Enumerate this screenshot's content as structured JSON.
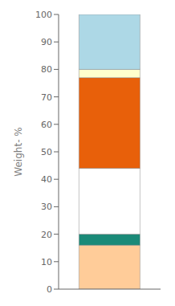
{
  "chart_data": {
    "type": "bar",
    "ylabel": "Weight- %",
    "categories": [
      null
    ],
    "series": [
      {
        "color": "#FFCC99",
        "values": [
          16
        ]
      },
      {
        "color": "#1A8A78",
        "values": [
          4
        ]
      },
      {
        "color": "#FFFFFF",
        "values": [
          24
        ]
      },
      {
        "color": "#E8600A",
        "values": [
          33
        ]
      },
      {
        "color": "#FFFFCC",
        "values": [
          3
        ]
      },
      {
        "color": "#ADD8E6",
        "values": [
          20
        ]
      }
    ],
    "stacked": true,
    "ylim": [
      0,
      100
    ],
    "yticks": [
      0,
      10,
      20,
      30,
      40,
      50,
      60,
      70,
      80,
      90,
      100
    ],
    "tick_labels": "y",
    "grid": false
  }
}
